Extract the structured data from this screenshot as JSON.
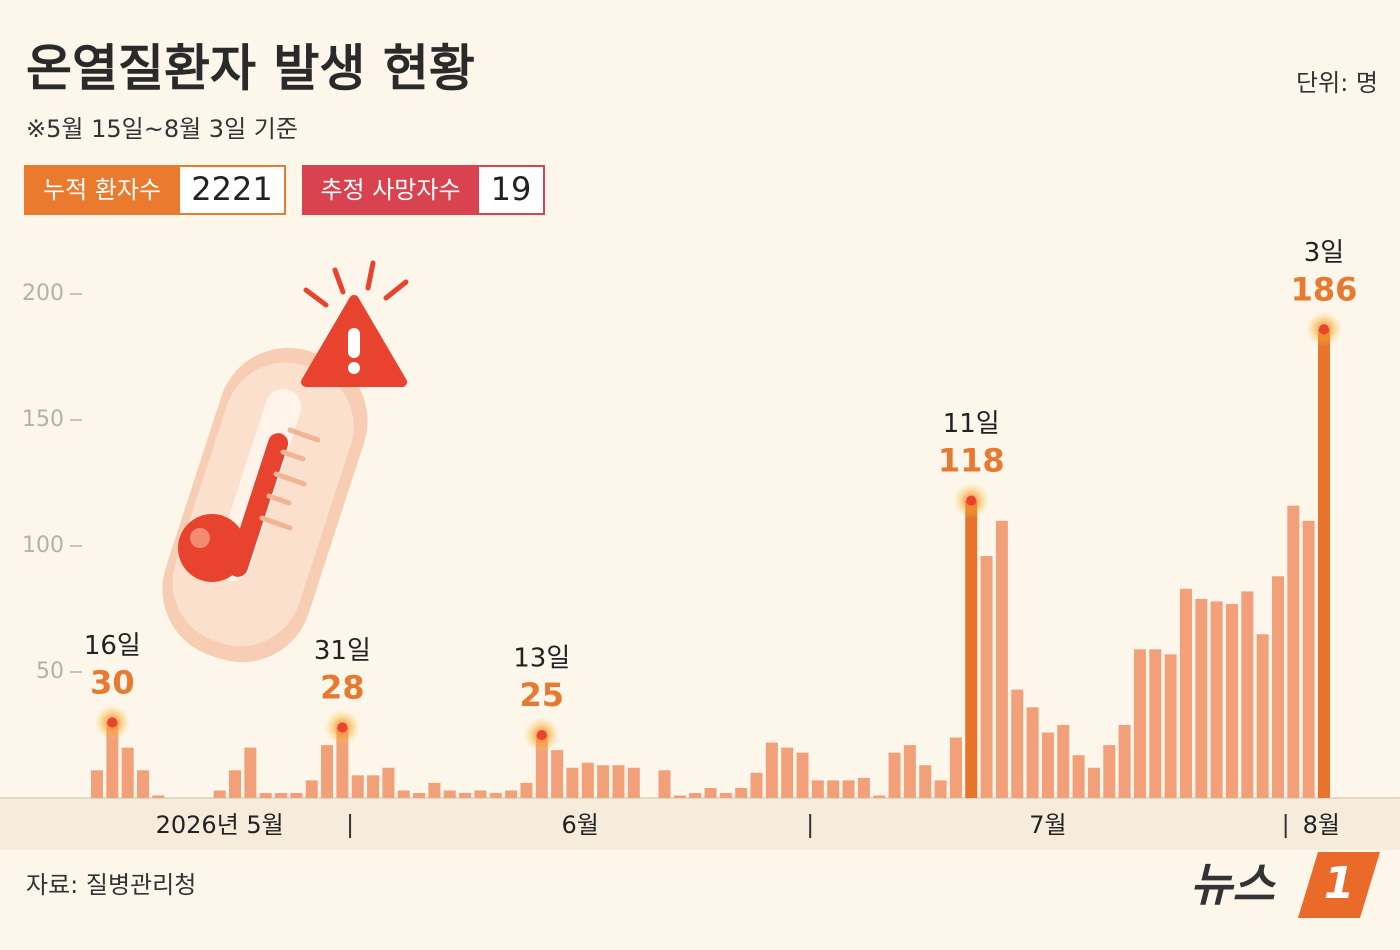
{
  "chart_data": {
    "type": "bar",
    "title": "온열질환자 발생 현황",
    "subtitle": "※5월 15일~8월 3일 기준",
    "unit": "단위: 명",
    "badges": [
      {
        "label": "누적 환자수",
        "value": 2221,
        "color": "#ea7a2e"
      },
      {
        "label": "추정 사망자수",
        "value": 19,
        "color": "#d8434f"
      }
    ],
    "source": "자료: 질병관리청",
    "logo": "뉴스",
    "logo_mark": "1",
    "month_labels": [
      "2026년 5월",
      "6월",
      "7월",
      "8월"
    ],
    "categories": [
      null,
      "16일",
      null,
      null,
      null,
      null,
      null,
      null,
      null,
      null,
      null,
      null,
      null,
      null,
      null,
      null,
      "31일",
      null,
      null,
      null,
      null,
      null,
      null,
      null,
      null,
      null,
      null,
      null,
      null,
      "13일",
      null,
      null,
      null,
      null,
      null,
      null,
      null,
      null,
      null,
      null,
      null,
      null,
      null,
      null,
      null,
      null,
      null,
      null,
      null,
      null,
      null,
      null,
      null,
      null,
      null,
      null,
      null,
      "11일",
      null,
      null,
      null,
      null,
      null,
      null,
      null,
      null,
      null,
      null,
      null,
      null,
      null,
      null,
      null,
      null,
      null,
      null,
      null,
      null,
      null,
      null,
      "3일"
    ],
    "values": [
      11,
      30,
      20,
      11,
      1,
      0,
      0,
      0,
      3,
      11,
      20,
      2,
      2,
      2,
      7,
      21,
      28,
      9,
      9,
      12,
      3,
      2,
      6,
      3,
      2,
      3,
      2,
      3,
      6,
      25,
      19,
      12,
      14,
      13,
      13,
      12,
      0,
      11,
      1,
      2,
      4,
      2,
      4,
      10,
      22,
      20,
      18,
      7,
      7,
      7,
      8,
      1,
      18,
      21,
      13,
      7,
      24,
      118,
      96,
      110,
      43,
      36,
      26,
      29,
      17,
      12,
      21,
      29,
      59,
      59,
      57,
      83,
      79,
      78,
      77,
      82,
      65,
      88,
      116,
      110,
      186
    ],
    "color": "#f2a07a",
    "highlight_color": "#e8742c",
    "ylim": [
      0,
      200
    ],
    "yticks": [
      50,
      100,
      150,
      200
    ]
  }
}
